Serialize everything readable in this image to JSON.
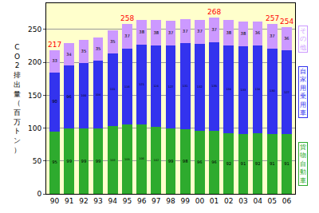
{
  "chart_data": {
    "type": "bar",
    "stacked": true,
    "data_labels": true,
    "grid": true,
    "y_label": "CO2排出量（百万トン）",
    "categories": [
      "90",
      "91",
      "92",
      "93",
      "94",
      "95",
      "96",
      "97",
      "98",
      "99",
      "00",
      "01",
      "02",
      "03",
      "04",
      "05",
      "06"
    ],
    "series": [
      {
        "name": "貨物自動車",
        "color": "#2eab2e",
        "values": [
          95,
          99,
          99,
          99,
          103,
          105,
          106,
          102,
          99,
          98,
          96,
          96,
          92,
          91,
          92,
          91,
          91
        ]
      },
      {
        "name": "自家用乗用車",
        "color": "#3333ee",
        "values": [
          90,
          96,
          100,
          104,
          111,
          116,
          121,
          124,
          127,
          131,
          132,
          135,
          134,
          133,
          134,
          130,
          127
        ]
      },
      {
        "name": "その他",
        "color": "#cc99ff",
        "values": [
          33,
          34,
          35,
          35,
          35,
          37,
          38,
          38,
          37,
          37,
          37,
          37,
          38,
          38,
          36,
          37,
          36
        ]
      }
    ],
    "annotations": [
      {
        "category": "90",
        "text": "217"
      },
      {
        "category": "95",
        "text": "258"
      },
      {
        "category": "01",
        "text": "268"
      },
      {
        "category": "05",
        "text": "257"
      },
      {
        "category": "06",
        "text": "254"
      }
    ],
    "ylim": [
      0,
      290
    ],
    "yticks": [
      0,
      50,
      100,
      150,
      200,
      250
    ]
  }
}
